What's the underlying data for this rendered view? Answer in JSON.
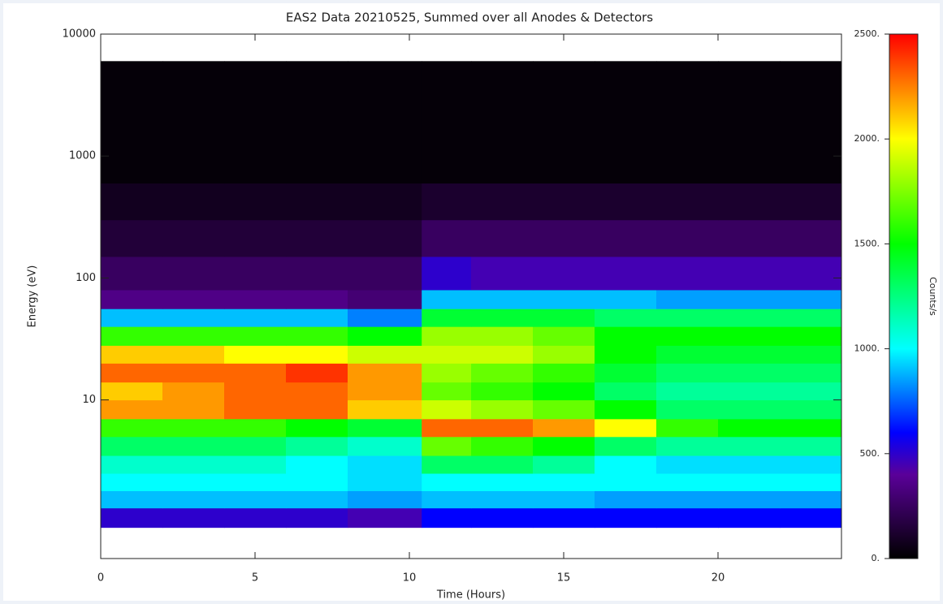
{
  "chart_data": {
    "type": "heatmap",
    "title": "EAS2 Data 20210525, Summed over all Anodes & Detectors",
    "x_label": "Time (Hours)",
    "y_label": "Energy (eV)",
    "colorbar_label": "Counts/s",
    "x_bins": [
      0,
      2,
      4,
      6,
      8,
      10.4,
      12,
      14,
      16,
      18,
      20,
      22,
      24
    ],
    "y_bins": [
      0.9,
      1.3,
      1.8,
      2.5,
      3.5,
      5,
      7,
      10,
      14,
      20,
      28,
      40,
      56,
      80,
      150,
      300,
      600,
      6000
    ],
    "z": [
      [
        500,
        500,
        500,
        500,
        450,
        600,
        600,
        600,
        600,
        600,
        600,
        600
      ],
      [
        900,
        900,
        900,
        900,
        850,
        900,
        900,
        900,
        850,
        850,
        850,
        850
      ],
      [
        1000,
        1000,
        1000,
        1000,
        950,
        1000,
        1000,
        1000,
        1000,
        1000,
        1000,
        1000
      ],
      [
        1100,
        1100,
        1100,
        1000,
        950,
        1300,
        1300,
        1200,
        1000,
        950,
        950,
        950
      ],
      [
        1300,
        1300,
        1300,
        1200,
        1100,
        1700,
        1600,
        1500,
        1300,
        1200,
        1200,
        1200
      ],
      [
        1600,
        1600,
        1600,
        1500,
        1400,
        2300,
        2300,
        2200,
        2000,
        1600,
        1500,
        1500
      ],
      [
        2200,
        2200,
        2300,
        2300,
        2100,
        1900,
        1800,
        1700,
        1500,
        1300,
        1300,
        1300
      ],
      [
        2100,
        2200,
        2300,
        2300,
        2200,
        1700,
        1600,
        1500,
        1300,
        1200,
        1200,
        1200
      ],
      [
        2300,
        2300,
        2300,
        2400,
        2200,
        1800,
        1700,
        1600,
        1400,
        1300,
        1300,
        1300
      ],
      [
        2100,
        2100,
        2000,
        2000,
        1900,
        1900,
        1900,
        1800,
        1500,
        1400,
        1400,
        1400
      ],
      [
        1600,
        1600,
        1600,
        1600,
        1500,
        1800,
        1800,
        1700,
        1500,
        1500,
        1500,
        1500
      ],
      [
        900,
        900,
        900,
        900,
        800,
        1400,
        1400,
        1400,
        1300,
        1300,
        1300,
        1300
      ],
      [
        350,
        350,
        350,
        350,
        300,
        900,
        900,
        900,
        900,
        850,
        850,
        850
      ],
      [
        250,
        250,
        250,
        250,
        250,
        500,
        450,
        450,
        450,
        450,
        450,
        450
      ],
      [
        150,
        150,
        150,
        150,
        150,
        250,
        250,
        250,
        250,
        250,
        250,
        250
      ],
      [
        80,
        80,
        80,
        80,
        80,
        120,
        120,
        120,
        120,
        120,
        120,
        120
      ],
      [
        20,
        20,
        20,
        20,
        20,
        20,
        20,
        20,
        20,
        20,
        20,
        20
      ]
    ],
    "xlim": [
      0,
      24
    ],
    "xticks": [
      0,
      5,
      10,
      15,
      20
    ],
    "ylim": [
      0.5,
      10000
    ],
    "yticks": [
      10,
      100,
      1000,
      10000
    ],
    "ylog": true,
    "clim": [
      0,
      2500
    ],
    "cticks": [
      {
        "value": 0,
        "label": "0."
      },
      {
        "value": 500,
        "label": "500."
      },
      {
        "value": 1000,
        "label": "1000."
      },
      {
        "value": 1500,
        "label": "1500."
      },
      {
        "value": 2000,
        "label": "2000."
      },
      {
        "value": 2500,
        "label": "2500."
      }
    ]
  }
}
